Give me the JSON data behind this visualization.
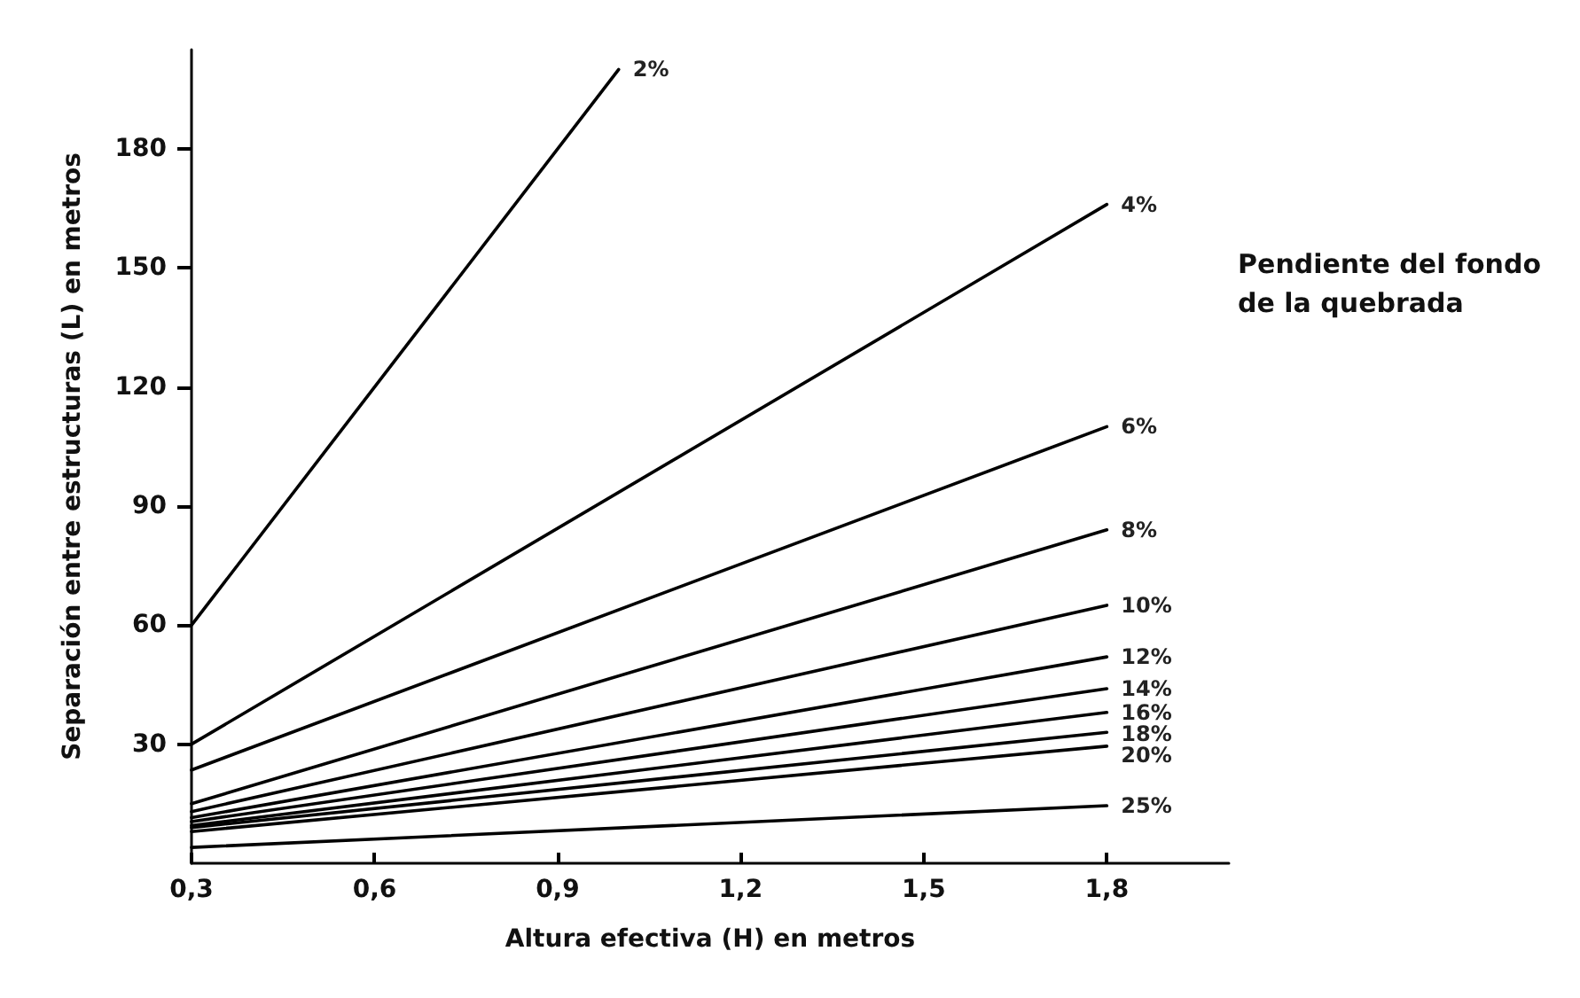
{
  "chart_data": {
    "type": "line",
    "xlabel": "Altura efectiva (H) en metros",
    "ylabel": "Separación entre estructuras (L) en metros",
    "x": [
      0.3,
      1.8
    ],
    "series": [
      {
        "name": "2%",
        "color": "#000000",
        "x": [
          0.3,
          1.0
        ],
        "values": [
          60,
          200
        ]
      },
      {
        "name": "4%",
        "color": "#000000",
        "values": [
          30,
          166
        ]
      },
      {
        "name": "6%",
        "color": "#000000",
        "values": [
          23.5,
          110
        ]
      },
      {
        "name": "8%",
        "color": "#000000",
        "values": [
          15,
          84
        ]
      },
      {
        "name": "10%",
        "color": "#000000",
        "values": [
          13,
          65
        ]
      },
      {
        "name": "12%",
        "color": "#000000",
        "values": [
          11.5,
          52
        ]
      },
      {
        "name": "14%",
        "color": "#000000",
        "values": [
          10.5,
          44
        ]
      },
      {
        "name": "16%",
        "color": "#000000",
        "values": [
          9.5,
          38
        ]
      },
      {
        "name": "18%",
        "color": "#000000",
        "values": [
          9,
          33
        ]
      },
      {
        "name": "20%",
        "color": "#000000",
        "values": [
          8,
          29.5
        ]
      },
      {
        "name": "25%",
        "color": "#000000",
        "values": [
          4,
          14.5
        ]
      }
    ],
    "xlim": [
      0.3,
      2.0
    ],
    "ylim": [
      0,
      205
    ],
    "xticks": [
      {
        "value": 0.3,
        "label": "0,3"
      },
      {
        "value": 0.6,
        "label": "0,6"
      },
      {
        "value": 0.9,
        "label": "0,9"
      },
      {
        "value": 1.2,
        "label": "1,2"
      },
      {
        "value": 1.5,
        "label": "1,5"
      },
      {
        "value": 1.8,
        "label": "1,8"
      }
    ],
    "yticks": [
      30,
      60,
      90,
      120,
      150,
      180
    ],
    "annotations": [
      "Pendiente del fondo de la quebrada"
    ],
    "grid": false,
    "legend": false,
    "marker": "none",
    "line_style": "solid"
  }
}
